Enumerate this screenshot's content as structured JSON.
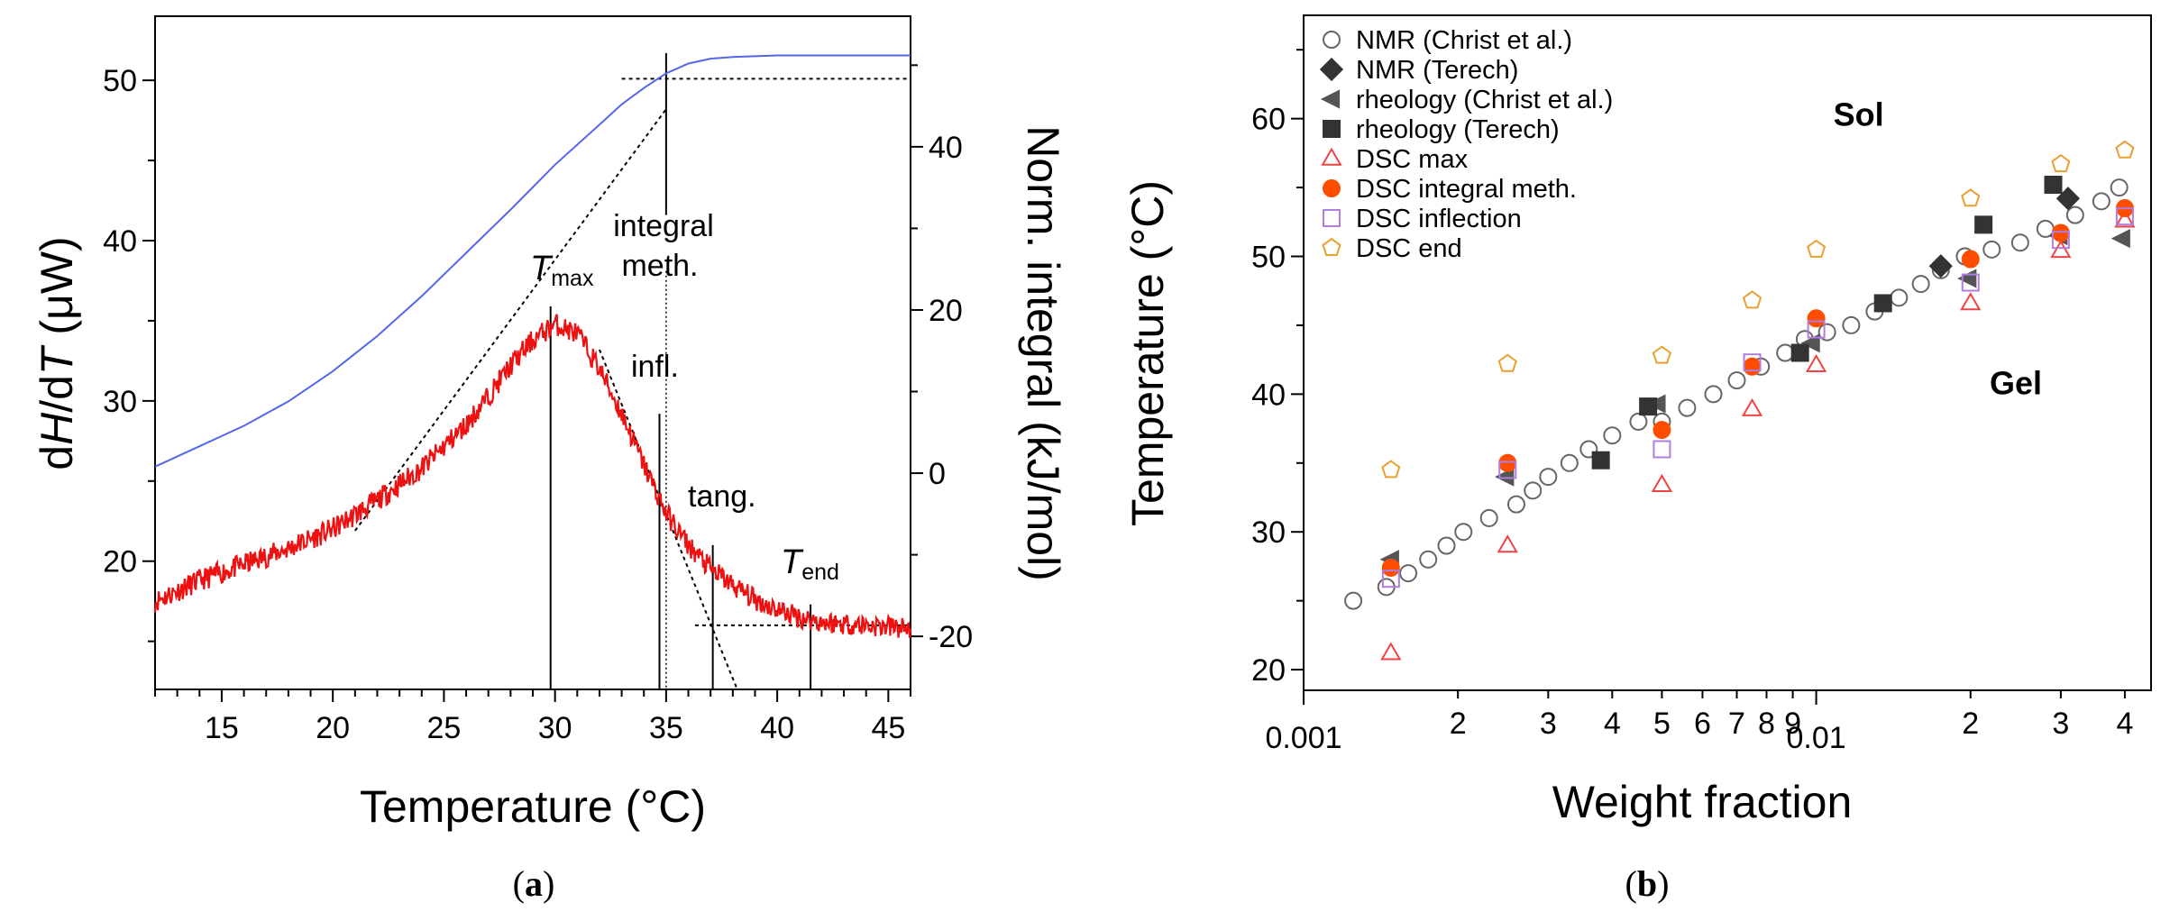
{
  "chart_data": [
    {
      "type": "line",
      "panel_label": "a",
      "xlabel": "Temperature (°C)",
      "ylabel_left": {
        "pre": "d",
        "H": "H",
        "mid": "/d",
        "T": "T",
        "post": " (μW)"
      },
      "ylabel_right": "Norm. integral (kJ/mol)",
      "xlim": [
        12,
        46
      ],
      "ylim_left": [
        12,
        54
      ],
      "ylim_right": [
        -26.5,
        56
      ],
      "x_ticks": [
        15,
        20,
        25,
        30,
        35,
        40,
        45
      ],
      "y_ticks_left": [
        20,
        30,
        40,
        50
      ],
      "y_ticks_right": [
        -20,
        0,
        20,
        40
      ],
      "series": [
        {
          "axis": "left",
          "color": "#ee1111",
          "x": [
            12,
            14,
            16,
            18,
            20,
            22,
            24,
            26,
            27,
            28,
            29,
            30,
            31,
            32,
            33,
            34,
            35,
            36,
            37,
            38,
            39,
            40,
            41,
            42,
            44,
            46
          ],
          "y": [
            17.5,
            18.8,
            19.8,
            20.8,
            22.0,
            23.8,
            25.8,
            28.5,
            30.3,
            32.2,
            33.8,
            34.8,
            34.2,
            32.0,
            29.2,
            26.0,
            23.0,
            21.0,
            19.5,
            18.5,
            17.6,
            17.0,
            16.5,
            16.2,
            16.0,
            15.8
          ]
        },
        {
          "axis": "right",
          "color": "#5566ee",
          "x": [
            12,
            14,
            16,
            18,
            20,
            22,
            24,
            26,
            28,
            30,
            32,
            33,
            34,
            35,
            36,
            37,
            38,
            40,
            42,
            44,
            46
          ],
          "y": [
            0.8,
            3.3,
            5.8,
            8.8,
            12.5,
            16.8,
            21.7,
            27.0,
            32.3,
            37.8,
            42.7,
            45.2,
            47.2,
            49.0,
            50.2,
            50.8,
            51.0,
            51.2,
            51.2,
            51.2,
            51.2
          ]
        }
      ],
      "annotations": {
        "t_max": "T",
        "t_max_sub": "max",
        "integral_1": "integral",
        "integral_2": "meth.",
        "infl": "infl.",
        "tang": "tang.",
        "t_end": "T",
        "t_end_sub": "end"
      },
      "markers_x": {
        "t_max": 29.8,
        "infl": 34.7,
        "integral": 35.0,
        "tang": 37.1,
        "t_end": 41.5
      }
    },
    {
      "type": "scatter",
      "panel_label": "b",
      "xlabel": "Weight fraction",
      "ylabel": "Temperature (°C)",
      "x_scale": "log",
      "xlim": [
        0.001,
        0.045
      ],
      "ylim": [
        18.5,
        67.5
      ],
      "x_tick_labels": [
        {
          "v": 0.001,
          "t": "0.001"
        },
        {
          "v": 0.002,
          "t": "2"
        },
        {
          "v": 0.003,
          "t": "3"
        },
        {
          "v": 0.004,
          "t": "4"
        },
        {
          "v": 0.005,
          "t": "5"
        },
        {
          "v": 0.006,
          "t": "6"
        },
        {
          "v": 0.007,
          "t": "7"
        },
        {
          "v": 0.008,
          "t": "8"
        },
        {
          "v": 0.009,
          "t": "9"
        },
        {
          "v": 0.01,
          "t": "0.01"
        },
        {
          "v": 0.02,
          "t": "2"
        },
        {
          "v": 0.03,
          "t": "3"
        },
        {
          "v": 0.04,
          "t": "4"
        }
      ],
      "y_ticks": [
        20,
        30,
        40,
        50,
        60
      ],
      "region_labels": {
        "sol": "Sol",
        "gel": "Gel"
      },
      "region_positions": {
        "sol": [
          0.0108,
          59.5
        ],
        "gel": [
          0.0218,
          40.0
        ]
      },
      "series": [
        {
          "name": "NMR (Christ et al.)",
          "marker": "circle-open",
          "color": "#666666",
          "x": [
            0.00125,
            0.00145,
            0.0016,
            0.00175,
            0.0019,
            0.00205,
            0.0023,
            0.0026,
            0.0028,
            0.003,
            0.0033,
            0.0036,
            0.004,
            0.0045,
            0.005,
            0.0056,
            0.0063,
            0.007,
            0.0078,
            0.0087,
            0.0095,
            0.0105,
            0.0117,
            0.013,
            0.0145,
            0.016,
            0.0175,
            0.0195,
            0.022,
            0.025,
            0.028,
            0.032,
            0.036,
            0.039
          ],
          "y": [
            25.0,
            26.0,
            27.0,
            28.0,
            29.0,
            30.0,
            31.0,
            32.0,
            33.0,
            34.0,
            35.0,
            36.0,
            37.0,
            38.0,
            38.0,
            39.0,
            40.0,
            41.0,
            42.0,
            43.0,
            44.0,
            44.5,
            45.0,
            46.0,
            47.0,
            48.0,
            49.0,
            50.0,
            50.5,
            51.0,
            52.0,
            53.0,
            54.0,
            55.0
          ]
        },
        {
          "name": "NMR (Terech)",
          "marker": "diamond",
          "color": "#333333",
          "x": [
            0.0175,
            0.031
          ],
          "y": [
            49.3,
            54.2
          ]
        },
        {
          "name": "rheology (Christ et al.)",
          "marker": "triangle-left",
          "color": "#555555",
          "x": [
            0.00148,
            0.00248,
            0.0049,
            0.0098,
            0.0198,
            0.0298,
            0.0395
          ],
          "y": [
            28.0,
            34.0,
            39.3,
            43.7,
            48.4,
            51.5,
            51.3
          ]
        },
        {
          "name": "rheology (Terech)",
          "marker": "square",
          "color": "#333333",
          "x": [
            0.0038,
            0.0047,
            0.0093,
            0.0135,
            0.0212,
            0.029
          ],
          "y": [
            35.2,
            39.1,
            43.0,
            46.6,
            52.3,
            55.2
          ]
        },
        {
          "name": "DSC max",
          "marker": "triangle-up-open",
          "color": "#ee4444",
          "x": [
            0.00148,
            0.0025,
            0.005,
            0.0075,
            0.01,
            0.02,
            0.03,
            0.04
          ],
          "y": [
            21.2,
            29.0,
            33.4,
            38.9,
            42.1,
            46.6,
            50.4,
            52.6
          ]
        },
        {
          "name": "DSC integral meth.",
          "marker": "circle",
          "color": "#ff4d00",
          "x": [
            0.00148,
            0.0025,
            0.005,
            0.0075,
            0.01,
            0.02,
            0.03,
            0.04
          ],
          "y": [
            27.4,
            35.0,
            37.4,
            42.0,
            45.5,
            49.8,
            51.7,
            53.5
          ]
        },
        {
          "name": "DSC inflection",
          "marker": "square-open",
          "color": "#b07ee0",
          "x": [
            0.00148,
            0.0025,
            0.005,
            0.0075,
            0.01,
            0.02,
            0.03,
            0.04
          ],
          "y": [
            26.6,
            34.5,
            36.0,
            42.3,
            44.7,
            48.1,
            51.2,
            52.9
          ]
        },
        {
          "name": "DSC end",
          "marker": "pentagon-open",
          "color": "#e8a030",
          "x": [
            0.00148,
            0.0025,
            0.005,
            0.0075,
            0.01,
            0.02,
            0.03,
            0.04
          ],
          "y": [
            34.5,
            42.2,
            42.8,
            46.8,
            50.5,
            54.2,
            56.7,
            57.7
          ]
        }
      ]
    }
  ],
  "captions": {
    "a_open": "(",
    "a": "a",
    "a_close": ")",
    "b_open": "(",
    "b": "b",
    "b_close": ")"
  }
}
